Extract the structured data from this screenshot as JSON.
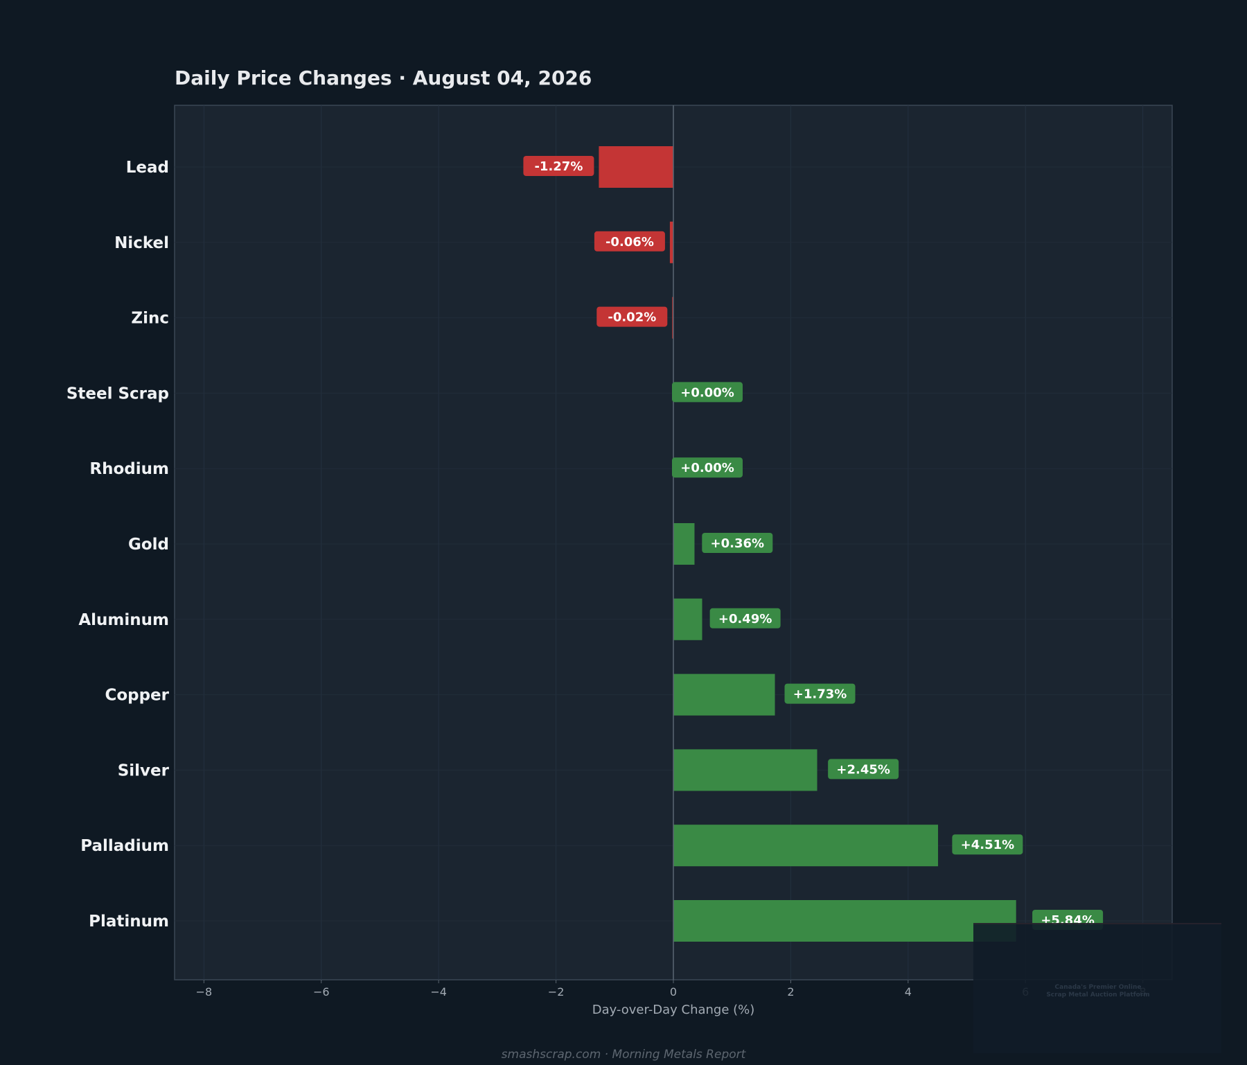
{
  "chart_data": {
    "type": "bar",
    "orientation": "horizontal",
    "title": "Daily Price Changes  ·  August 04, 2026",
    "xlabel": "Day-over-Day Change (%)",
    "ylabel": "",
    "categories": [
      "Lead",
      "Nickel",
      "Zinc",
      "Steel Scrap",
      "Rhodium",
      "Gold",
      "Aluminum",
      "Copper",
      "Silver",
      "Palladium",
      "Platinum"
    ],
    "values": [
      -1.27,
      -0.06,
      -0.02,
      0.0,
      0.0,
      0.36,
      0.49,
      1.73,
      2.45,
      4.51,
      5.84
    ],
    "value_labels": [
      "-1.27%",
      "-0.06%",
      "-0.02%",
      "+0.00%",
      "+0.00%",
      "+0.36%",
      "+0.49%",
      "+1.73%",
      "+2.45%",
      "+4.51%",
      "+5.84%"
    ],
    "xlim": [
      -8.5,
      8.5
    ],
    "xticks": [
      -8,
      -6,
      -4,
      -2,
      0,
      2,
      4,
      6,
      8
    ],
    "xtick_labels": [
      "−8",
      "−6",
      "−4",
      "−2",
      "0",
      "2",
      "4",
      "6",
      "8"
    ],
    "grid": true,
    "colors": {
      "positive": "#3a8a45",
      "negative": "#c43535",
      "page_background": "#0f1923",
      "plot_background": "#1b2530"
    }
  },
  "footer": "smashscrap.com  ·  Morning Metals Report",
  "watermark": {
    "icon": "logo-watermark",
    "lines": [
      "Canada's Premier Online",
      "Scrap Metal Auction Platform"
    ]
  }
}
